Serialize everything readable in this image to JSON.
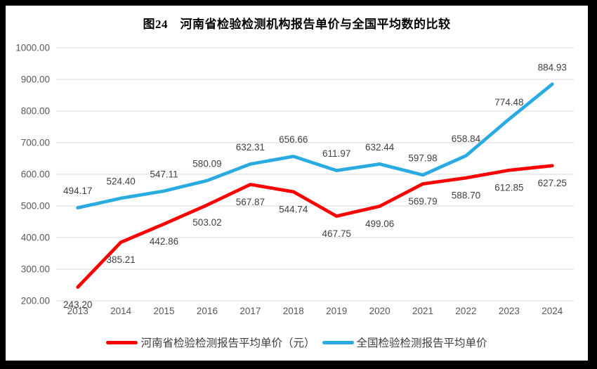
{
  "chart_data": {
    "type": "line",
    "title": "图24　河南省检验检测机构报告单价与全国平均数的比较",
    "categories": [
      "2013",
      "2014",
      "2015",
      "2016",
      "2017",
      "2018",
      "2019",
      "2020",
      "2021",
      "2022",
      "2023",
      "2024"
    ],
    "series": [
      {
        "name": "河南省检验检测报告平均单价（元）",
        "slug": "henan",
        "color": "#FE0000",
        "label_position": "below",
        "values": [
          243.2,
          385.21,
          442.86,
          503.02,
          567.87,
          544.74,
          467.75,
          499.06,
          569.79,
          588.7,
          612.85,
          627.25
        ]
      },
      {
        "name": "全国检验检测报告平均单价",
        "slug": "national",
        "color": "#29ABE2",
        "label_position": "above",
        "values": [
          494.17,
          524.4,
          547.11,
          580.09,
          632.31,
          656.66,
          611.97,
          632.44,
          597.98,
          658.84,
          774.48,
          884.93
        ]
      }
    ],
    "xlabel": "",
    "ylabel": "",
    "ylim": [
      200,
      1000
    ],
    "ytick_step": 100,
    "ytick_format": "2-decimals",
    "grid": true,
    "legend_position": "bottom"
  },
  "colors": {
    "grid": "#D9D9D9",
    "axis_label": "#595959",
    "data_label": "#404040",
    "frame_border": "#000000",
    "background": "#FFFFFF"
  }
}
